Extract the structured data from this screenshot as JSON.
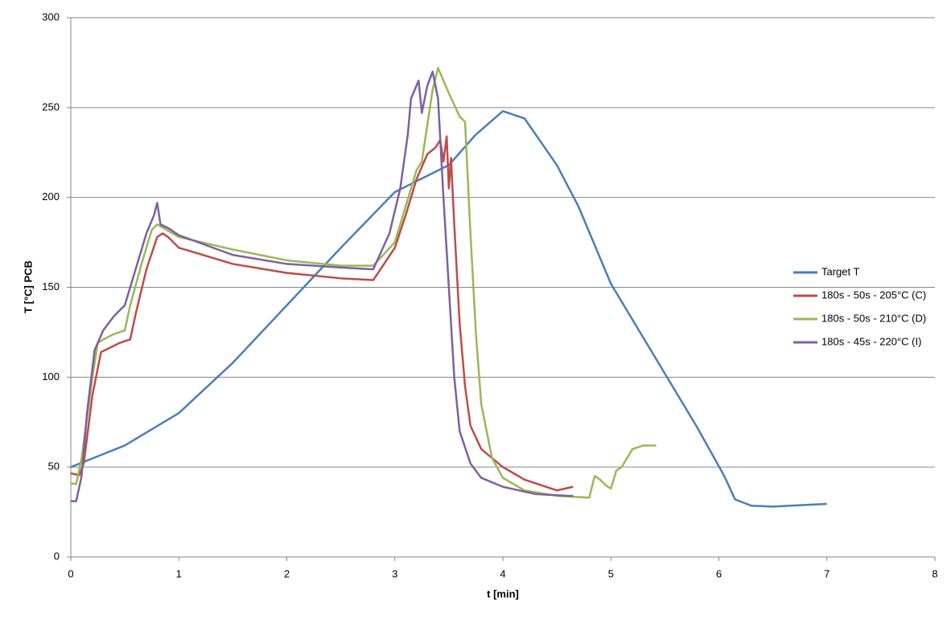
{
  "chart_data": {
    "type": "line",
    "x_label": "t [min]",
    "y_label": "T [°C] PCB",
    "xlim": [
      0,
      8
    ],
    "xticks": [
      0,
      1,
      2,
      3,
      4,
      5,
      6,
      7,
      8
    ],
    "ylim": [
      0,
      300
    ],
    "yticks": [
      0,
      50,
      100,
      150,
      200,
      250,
      300
    ],
    "grid": true,
    "legend": "right",
    "series": [
      {
        "name": "Target T",
        "color": "#4a7ebb",
        "x": [
          0,
          0.5,
          1,
          1.5,
          2,
          2.5,
          3,
          3.5,
          3.75,
          4,
          4.2,
          4.5,
          4.7,
          5,
          5.5,
          5.8,
          6.05,
          6.15,
          6.3,
          6.5,
          7
        ],
        "values": [
          50,
          62,
          80,
          108,
          140,
          172,
          203,
          218,
          235,
          248,
          244,
          218,
          195,
          152,
          102,
          72,
          45,
          32,
          28.5,
          28,
          29.5
        ]
      },
      {
        "name": "180s - 50s - 205°C (C)",
        "color": "#be4b48",
        "x": [
          0,
          0.08,
          0.12,
          0.2,
          0.28,
          0.35,
          0.45,
          0.55,
          0.6,
          0.7,
          0.8,
          0.85,
          0.9,
          1,
          1.5,
          2,
          2.5,
          2.8,
          3,
          3.1,
          3.2,
          3.3,
          3.38,
          3.42,
          3.45,
          3.48,
          3.5,
          3.52,
          3.55,
          3.6,
          3.65,
          3.7,
          3.8,
          4,
          4.2,
          4.5,
          4.65
        ],
        "values": [
          46.5,
          45.5,
          52,
          90,
          114,
          116,
          119,
          121,
          135,
          160,
          178,
          180,
          178,
          172,
          163,
          158,
          155,
          154,
          172,
          190,
          210,
          224,
          228,
          232,
          220,
          234,
          205,
          222,
          185,
          130,
          95,
          73,
          60,
          50,
          43,
          37,
          39
        ]
      },
      {
        "name": "180s - 50s - 210°C (D)",
        "color": "#98b954",
        "x": [
          0,
          0.05,
          0.1,
          0.2,
          0.25,
          0.3,
          0.4,
          0.5,
          0.55,
          0.65,
          0.75,
          0.8,
          1,
          1.5,
          2,
          2.5,
          2.8,
          3,
          3.1,
          3.2,
          3.25,
          3.3,
          3.35,
          3.4,
          3.45,
          3.5,
          3.6,
          3.65,
          3.7,
          3.75,
          3.8,
          3.9,
          4,
          4.2,
          4.5,
          4.8,
          4.85,
          4.9,
          4.95,
          5,
          5.05,
          5.1,
          5.2,
          5.3,
          5.42
        ],
        "values": [
          41,
          40.5,
          55,
          100,
          119,
          121,
          124,
          126,
          140,
          162,
          182,
          185,
          178,
          171,
          165,
          162,
          162,
          175,
          195,
          215,
          220,
          240,
          260,
          272,
          265,
          258,
          245,
          242,
          180,
          125,
          85,
          55,
          44,
          37,
          34,
          33,
          45,
          43,
          40,
          38,
          48,
          50,
          60,
          62,
          62
        ]
      },
      {
        "name": "180s - 45s - 220°C (I)",
        "color": "#7d60a0",
        "x": [
          0,
          0.05,
          0.1,
          0.15,
          0.22,
          0.3,
          0.4,
          0.5,
          0.6,
          0.7,
          0.77,
          0.8,
          0.83,
          0.9,
          1,
          1.5,
          2,
          2.5,
          2.8,
          2.95,
          3.05,
          3.12,
          3.15,
          3.22,
          3.25,
          3.3,
          3.35,
          3.4,
          3.45,
          3.5,
          3.55,
          3.6,
          3.7,
          3.8,
          4,
          4.3,
          4.6,
          4.65
        ],
        "values": [
          31,
          31,
          45,
          80,
          115,
          126,
          134,
          140,
          160,
          180,
          190,
          197,
          185,
          183,
          179,
          168,
          163,
          161,
          160,
          180,
          205,
          235,
          255,
          265,
          247,
          262,
          270,
          255,
          200,
          150,
          100,
          70,
          52,
          44,
          39,
          35,
          34,
          34
        ]
      }
    ]
  }
}
